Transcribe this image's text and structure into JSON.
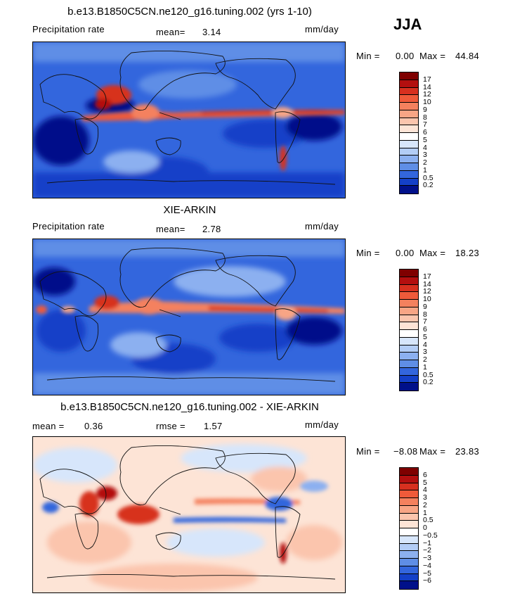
{
  "season": "JJA",
  "panels": [
    {
      "title": "b.e13.B1850C5CN.ne120_g16.tuning.002 (yrs 1-10)",
      "left_label": "Precipitation rate",
      "stat_label": "mean=",
      "stat_value": "3.14",
      "units": "mm/day",
      "min_label": "Min =",
      "min_value": "0.00",
      "max_label": "Max =",
      "max_value": "44.84"
    },
    {
      "title": "XIE-ARKIN",
      "left_label": "Precipitation rate",
      "stat_label": "mean=",
      "stat_value": "2.78",
      "units": "mm/day",
      "min_label": "Min =",
      "min_value": "0.00",
      "max_label": "Max =",
      "max_value": "18.23"
    },
    {
      "title": "b.e13.B1850C5CN.ne120_g16.tuning.002 - XIE-ARKIN",
      "left_label": "mean =",
      "left_value": "0.36",
      "stat_label": "rmse =",
      "stat_value": "1.57",
      "units": "mm/day",
      "min_label": "Min =",
      "min_value": "−8.08",
      "max_label": "Max =",
      "max_value": "23.83"
    }
  ],
  "colorbars": {
    "precip": {
      "labels": [
        "17",
        "14",
        "12",
        "10",
        "9",
        "8",
        "7",
        "6",
        "5",
        "4",
        "3",
        "2",
        "1",
        "0.5",
        "0.2"
      ],
      "colors": [
        "#7f0000",
        "#b30f0f",
        "#d7301f",
        "#ef5a3a",
        "#f4815e",
        "#f8a585",
        "#fbc5ad",
        "#fde4d6",
        "#ffffff",
        "#d7e6fb",
        "#b3cdf6",
        "#8cb0f0",
        "#5f8ee6",
        "#3366dd",
        "#1440c8",
        "#00108a"
      ]
    },
    "diff": {
      "labels": [
        "6",
        "5",
        "4",
        "3",
        "2",
        "1",
        "0.5",
        "0",
        "−0.5",
        "−1",
        "−2",
        "−3",
        "−4",
        "−5",
        "−6"
      ],
      "colors": [
        "#7f0000",
        "#b30f0f",
        "#d7301f",
        "#ef5a3a",
        "#f4815e",
        "#f8a585",
        "#fbc5ad",
        "#fde4d6",
        "#ffffff",
        "#d7e6fb",
        "#b3cdf6",
        "#8cb0f0",
        "#5f8ee6",
        "#3366dd",
        "#1440c8",
        "#00108a"
      ]
    }
  }
}
